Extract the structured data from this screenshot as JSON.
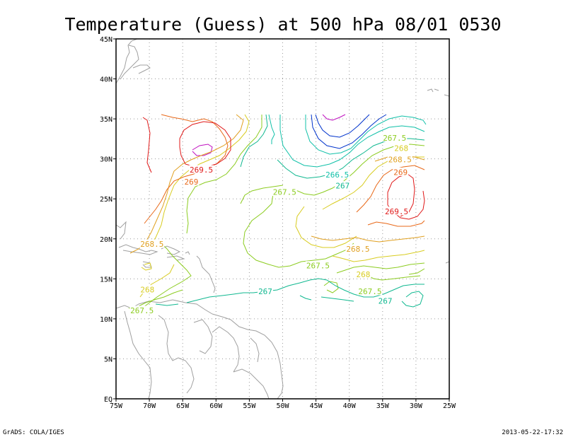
{
  "title": "Temperature (Guess) at 500 hPa 08/01 0530",
  "footer_left": "GrADS: COLA/IGES",
  "footer_right": "2013-05-22-17:32",
  "colors": {
    "c266": "#0033cc",
    "c2665": "#10c0a8",
    "c267": "#10b890",
    "c2675": "#8ccc20",
    "c268": "#d8cc20",
    "c2685": "#e0a020",
    "c269": "#e86818",
    "c2695": "#e01818",
    "c270": "#c010c0",
    "coast": "#a0a0a0",
    "grid": "#9a9a9a"
  },
  "chart_data": {
    "type": "contour",
    "title": "Temperature (Guess) at 500 hPa 08/01 0530",
    "variable": "Temperature",
    "level": "500 hPa",
    "xlabel": "",
    "ylabel": "",
    "lon_range": [
      -75,
      -25
    ],
    "lat_range": [
      0,
      45
    ],
    "x_ticks": [
      "75W",
      "70W",
      "65W",
      "60W",
      "55W",
      "50W",
      "45W",
      "40W",
      "35W",
      "30W",
      "25W"
    ],
    "y_ticks": [
      "EQ",
      "5N",
      "10N",
      "15N",
      "20N",
      "25N",
      "30N",
      "35N",
      "40N",
      "45N"
    ],
    "grid": true,
    "contour_interval": 0.5,
    "contour_labels": [
      {
        "text": "269.5",
        "lon": -62.2,
        "lat": 28.6,
        "level": 269.5
      },
      {
        "text": "269",
        "lon": -63.7,
        "lat": 27.1,
        "level": 269.0
      },
      {
        "text": "267.5",
        "lon": -49.7,
        "lat": 25.8,
        "level": 267.5
      },
      {
        "text": "266.5",
        "lon": -41.8,
        "lat": 28.0,
        "level": 266.5
      },
      {
        "text": "267",
        "lon": -41.0,
        "lat": 26.6,
        "level": 267.0
      },
      {
        "text": "267.5",
        "lon": -33.2,
        "lat": 32.6,
        "level": 267.5
      },
      {
        "text": "268",
        "lon": -32.2,
        "lat": 31.3,
        "level": 268.0
      },
      {
        "text": "268.5",
        "lon": -32.4,
        "lat": 29.9,
        "level": 268.5
      },
      {
        "text": "269",
        "lon": -32.3,
        "lat": 28.3,
        "level": 269.0
      },
      {
        "text": "269.5",
        "lon": -32.9,
        "lat": 23.4,
        "level": 269.5
      },
      {
        "text": "268.5",
        "lon": -69.6,
        "lat": 19.3,
        "level": 268.5
      },
      {
        "text": "268.5",
        "lon": -38.7,
        "lat": 18.7,
        "level": 268.5
      },
      {
        "text": "267.5",
        "lon": -44.7,
        "lat": 16.6,
        "level": 267.5
      },
      {
        "text": "268",
        "lon": -37.9,
        "lat": 15.5,
        "level": 268.0
      },
      {
        "text": "268",
        "lon": -70.3,
        "lat": 13.6,
        "level": 268.0
      },
      {
        "text": "267",
        "lon": -52.6,
        "lat": 13.4,
        "level": 267.0
      },
      {
        "text": "267.5",
        "lon": -36.9,
        "lat": 13.4,
        "level": 267.5
      },
      {
        "text": "267",
        "lon": -34.6,
        "lat": 12.2,
        "level": 267.0
      },
      {
        "text": "267.5",
        "lon": -71.1,
        "lat": 11.0,
        "level": 267.5
      }
    ]
  }
}
